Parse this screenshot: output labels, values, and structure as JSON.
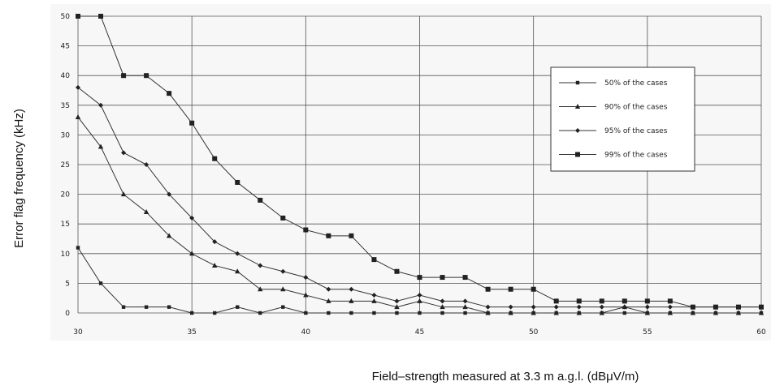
{
  "chart_data": {
    "type": "line",
    "xlabel": "Field–strength measured at 3.3 m a.g.l. (dBμV/m)",
    "ylabel": "Error flag frequency (kHz)",
    "xlim": [
      30,
      60
    ],
    "ylim": [
      0,
      50
    ],
    "x_ticks": [
      30,
      35,
      40,
      45,
      50,
      55,
      60
    ],
    "y_ticks": [
      0,
      5,
      10,
      15,
      20,
      25,
      30,
      35,
      40,
      45,
      50
    ],
    "grid": true,
    "legend_position": "right",
    "x": [
      30,
      31,
      32,
      33,
      34,
      35,
      36,
      37,
      38,
      39,
      40,
      41,
      42,
      43,
      44,
      45,
      46,
      47,
      48,
      49,
      50,
      51,
      52,
      53,
      54,
      55,
      56,
      57,
      58,
      59,
      60
    ],
    "series": [
      {
        "name": "50% of the cases",
        "marker": "square-small",
        "values": [
          11,
          5,
          1,
          1,
          1,
          0,
          0,
          1,
          0,
          1,
          0,
          0,
          0,
          0,
          0,
          0,
          0,
          0,
          0,
          0,
          0,
          0,
          0,
          0,
          0,
          0,
          0,
          0,
          0,
          0,
          0
        ]
      },
      {
        "name": "90% of the cases",
        "marker": "triangle",
        "values": [
          33,
          28,
          20,
          17,
          13,
          10,
          8,
          7,
          4,
          4,
          3,
          2,
          2,
          2,
          1,
          2,
          1,
          1,
          0,
          0,
          0,
          0,
          0,
          0,
          1,
          0,
          0,
          0,
          0,
          0,
          0
        ]
      },
      {
        "name": "95% of the cases",
        "marker": "diamond",
        "values": [
          38,
          35,
          27,
          25,
          20,
          16,
          12,
          10,
          8,
          7,
          6,
          4,
          4,
          3,
          2,
          3,
          2,
          2,
          1,
          1,
          1,
          1,
          1,
          1,
          1,
          1,
          1,
          1,
          1,
          1,
          1
        ]
      },
      {
        "name": "99% of the cases",
        "marker": "square",
        "values": [
          50,
          50,
          40,
          40,
          37,
          32,
          26,
          22,
          19,
          16,
          14,
          13,
          13,
          9,
          7,
          6,
          6,
          6,
          4,
          4,
          4,
          2,
          2,
          2,
          2,
          2,
          2,
          1,
          1,
          1,
          1
        ]
      }
    ]
  }
}
